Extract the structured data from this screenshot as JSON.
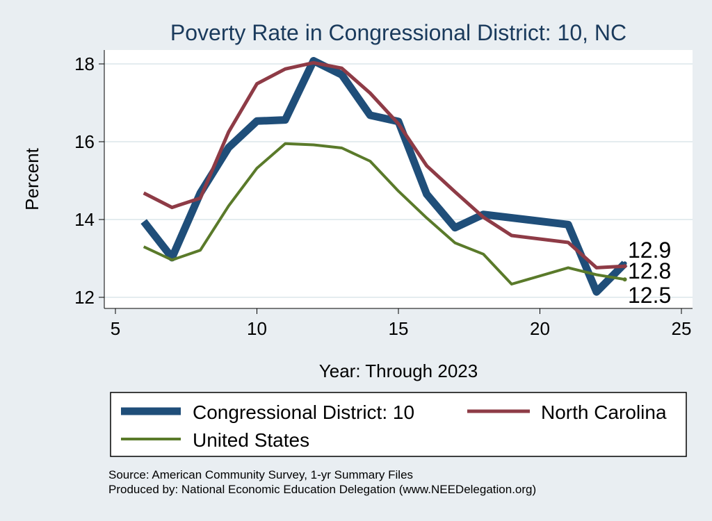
{
  "chart_data": {
    "type": "line",
    "title": "Poverty Rate in Congressional District:  10, NC",
    "xlabel": "Year: Through 2023",
    "ylabel": "Percent",
    "xlim": [
      5,
      25
    ],
    "ylim": [
      12,
      18
    ],
    "x_ticks": [
      "5",
      "10",
      "15",
      "20",
      "25"
    ],
    "y_ticks": [
      "12",
      "14",
      "16",
      "18"
    ],
    "grid": true,
    "series": [
      {
        "name": "Congressional District:  10",
        "color": "#1f4e79",
        "x": [
          6,
          7,
          8,
          9,
          10,
          11,
          12,
          13,
          14,
          15,
          16,
          17,
          18,
          21,
          22,
          23
        ],
        "values": [
          13.95,
          13.02,
          14.68,
          15.85,
          16.53,
          16.56,
          18.08,
          17.72,
          16.68,
          16.52,
          14.65,
          13.79,
          14.13,
          13.87,
          12.14,
          12.87
        ],
        "end_label": "12.9"
      },
      {
        "name": "North Carolina",
        "color": "#8e3b46",
        "x": [
          6,
          7,
          8,
          9,
          10,
          11,
          12,
          13,
          14,
          15,
          16,
          17,
          18,
          19,
          21,
          22,
          23
        ],
        "values": [
          14.68,
          14.31,
          14.55,
          16.25,
          17.49,
          17.87,
          18.03,
          17.89,
          17.25,
          16.46,
          15.38,
          14.71,
          14.06,
          13.59,
          13.41,
          12.76,
          12.8
        ],
        "end_label": "12.8"
      },
      {
        "name": "United States",
        "color": "#5a7a2a",
        "x": [
          6,
          7,
          8,
          9,
          10,
          11,
          12,
          13,
          14,
          15,
          16,
          17,
          18,
          19,
          21,
          22,
          23
        ],
        "values": [
          13.3,
          12.96,
          13.21,
          14.35,
          15.32,
          15.95,
          15.92,
          15.84,
          15.5,
          14.73,
          14.04,
          13.4,
          13.11,
          12.34,
          12.76,
          12.58,
          12.46
        ],
        "end_label": "12.5"
      }
    ],
    "legend": [
      "Congressional District:  10",
      "North Carolina",
      "United States"
    ],
    "legend_position": "bottom"
  },
  "footer": {
    "source": "Source: American Community Survey, 1-yr Summary Files",
    "produced": "Produced by: National Economic Education Delegation (www.NEEDelegation.org)"
  }
}
